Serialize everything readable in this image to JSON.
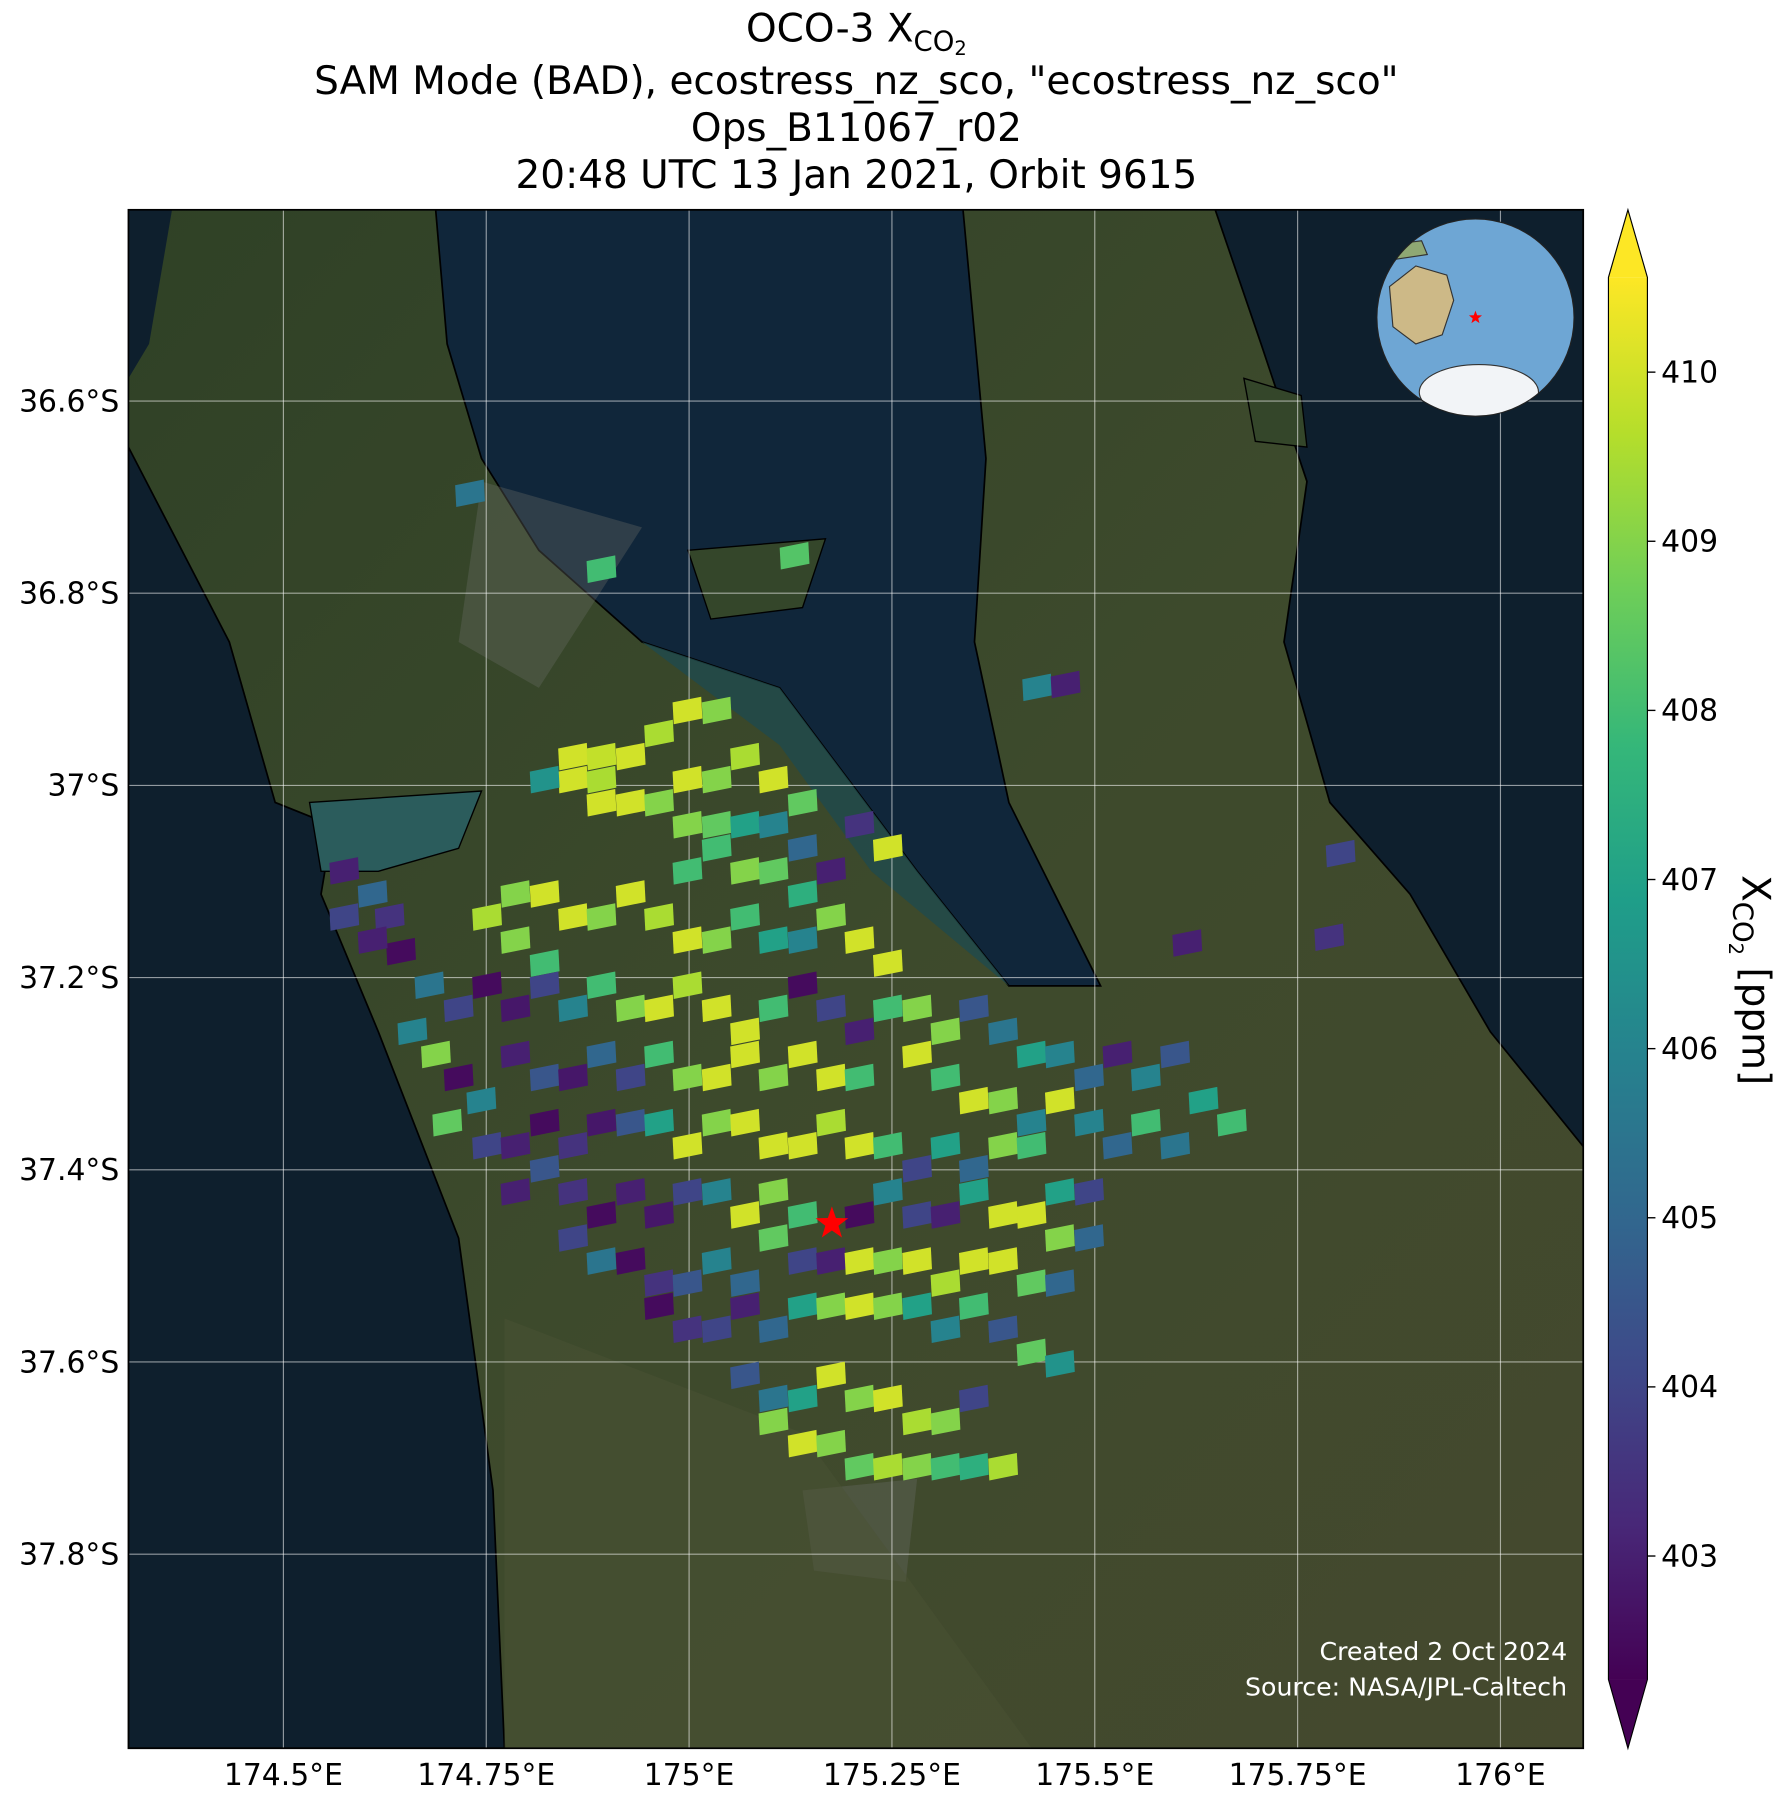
{
  "chart_data": {
    "type": "map",
    "title": "OCO-3 X",
    "title_sub": "CO",
    "title_subsub": "2",
    "subtitle_lines": [
      "SAM Mode (BAD), ecostress_nz_sco, \"ecostress_nz_sco\"",
      "Ops_B11067_r02",
      "20:48 UTC 13 Jan 2021, Orbit 9615"
    ],
    "xlim": [
      174.309,
      176.102
    ],
    "ylim": [
      -38.002,
      -36.401
    ],
    "xticks": [
      {
        "value": 174.5,
        "label": "174.5°E"
      },
      {
        "value": 174.75,
        "label": "174.75°E"
      },
      {
        "value": 175,
        "label": "175°E"
      },
      {
        "value": 175.25,
        "label": "175.25°E"
      },
      {
        "value": 175.5,
        "label": "175.5°E"
      },
      {
        "value": 175.75,
        "label": "175.75°E"
      },
      {
        "value": 176,
        "label": "176°E"
      }
    ],
    "yticks": [
      {
        "value": -36.6,
        "label": "36.6°S"
      },
      {
        "value": -36.8,
        "label": "36.8°S"
      },
      {
        "value": -37,
        "label": "37°S"
      },
      {
        "value": -37.2,
        "label": "37.2°S"
      },
      {
        "value": -37.4,
        "label": "37.4°S"
      },
      {
        "value": -37.6,
        "label": "37.6°S"
      },
      {
        "value": -37.8,
        "label": "37.8°S"
      }
    ],
    "grid": true,
    "colorbar": {
      "label": "X",
      "label_sub": "CO",
      "label_subsub": "2",
      "label_unit": " [ppm]",
      "clim": [
        402.27,
        410.56
      ],
      "ticks": [
        403,
        404,
        405,
        406,
        407,
        408,
        409,
        410
      ],
      "colormap": [
        "#440154",
        "#482878",
        "#3e4989",
        "#31688e",
        "#26828e",
        "#1f9e89",
        "#35b779",
        "#6ece58",
        "#b5de2b",
        "#fde725"
      ],
      "extend": true
    },
    "target": {
      "lon": 175.176,
      "lat": -37.456,
      "color": "#ff0000"
    },
    "footnotes": [
      "Created 2 Oct 2024",
      "Source: NASA/JPL-Caltech"
    ],
    "soundings": [
      [
        174.857,
        -36.97,
        410
      ],
      [
        174.892,
        -36.97,
        409.8
      ],
      [
        174.928,
        -36.97,
        410
      ],
      [
        174.963,
        -36.946,
        409.5
      ],
      [
        174.998,
        -36.922,
        410
      ],
      [
        175.034,
        -36.922,
        409
      ],
      [
        174.857,
        -36.994,
        410
      ],
      [
        174.892,
        -36.994,
        409.5
      ],
      [
        174.928,
        -37.018,
        410
      ],
      [
        174.963,
        -37.018,
        409
      ],
      [
        174.998,
        -36.994,
        410
      ],
      [
        175.034,
        -36.994,
        409
      ],
      [
        174.822,
        -36.994,
        406.5
      ],
      [
        174.892,
        -37.018,
        410
      ],
      [
        175.069,
        -36.97,
        409.5
      ],
      [
        175.104,
        -36.994,
        410
      ],
      [
        175.14,
        -37.018,
        408.5
      ],
      [
        174.998,
        -37.041,
        409
      ],
      [
        175.034,
        -37.041,
        408.5
      ],
      [
        175.069,
        -37.041,
        407
      ],
      [
        175.104,
        -37.041,
        406
      ],
      [
        175.14,
        -37.065,
        405
      ],
      [
        175.034,
        -37.065,
        408
      ],
      [
        175.069,
        -37.089,
        409
      ],
      [
        175.104,
        -37.089,
        408.5
      ],
      [
        175.14,
        -37.113,
        407.5
      ],
      [
        175.175,
        -37.089,
        403
      ],
      [
        175.21,
        -37.041,
        403.5
      ],
      [
        175.245,
        -37.065,
        410
      ],
      [
        174.998,
        -37.089,
        408
      ],
      [
        174.786,
        -37.113,
        409
      ],
      [
        174.822,
        -37.113,
        410
      ],
      [
        174.857,
        -37.137,
        410
      ],
      [
        174.892,
        -37.137,
        409
      ],
      [
        174.928,
        -37.113,
        410
      ],
      [
        174.963,
        -37.137,
        409.5
      ],
      [
        174.998,
        -37.161,
        410
      ],
      [
        175.034,
        -37.161,
        409
      ],
      [
        175.069,
        -37.137,
        408
      ],
      [
        175.104,
        -37.161,
        407
      ],
      [
        175.14,
        -37.161,
        406
      ],
      [
        175.175,
        -37.137,
        409
      ],
      [
        175.21,
        -37.161,
        410
      ],
      [
        175.245,
        -37.185,
        410
      ],
      [
        174.751,
        -37.137,
        409.5
      ],
      [
        174.786,
        -37.161,
        409
      ],
      [
        174.822,
        -37.185,
        408
      ],
      [
        174.575,
        -37.089,
        403
      ],
      [
        174.61,
        -37.113,
        405
      ],
      [
        174.631,
        -37.137,
        403.5
      ],
      [
        174.645,
        -37.173,
        402.5
      ],
      [
        174.61,
        -37.161,
        403
      ],
      [
        174.68,
        -37.208,
        405.5
      ],
      [
        174.716,
        -37.232,
        404
      ],
      [
        174.659,
        -37.256,
        406
      ],
      [
        174.688,
        -37.28,
        409
      ],
      [
        174.716,
        -37.304,
        402.5
      ],
      [
        174.744,
        -37.328,
        406
      ],
      [
        174.702,
        -37.351,
        408.5
      ],
      [
        174.575,
        -37.137,
        404
      ],
      [
        174.751,
        -37.208,
        402.5
      ],
      [
        174.786,
        -37.232,
        402.8
      ],
      [
        174.822,
        -37.208,
        404
      ],
      [
        174.857,
        -37.232,
        406
      ],
      [
        174.892,
        -37.208,
        408
      ],
      [
        174.928,
        -37.232,
        409
      ],
      [
        174.963,
        -37.232,
        410
      ],
      [
        174.998,
        -37.208,
        409.5
      ],
      [
        175.034,
        -37.232,
        410
      ],
      [
        175.069,
        -37.256,
        410
      ],
      [
        175.104,
        -37.232,
        408
      ],
      [
        175.14,
        -37.208,
        402.5
      ],
      [
        175.175,
        -37.232,
        404
      ],
      [
        175.21,
        -37.256,
        403
      ],
      [
        174.786,
        -37.28,
        403
      ],
      [
        174.822,
        -37.304,
        404.5
      ],
      [
        174.857,
        -37.304,
        402.8
      ],
      [
        174.892,
        -37.28,
        405
      ],
      [
        174.928,
        -37.304,
        404
      ],
      [
        174.963,
        -37.28,
        408
      ],
      [
        174.998,
        -37.304,
        409
      ],
      [
        175.034,
        -37.304,
        410
      ],
      [
        175.069,
        -37.28,
        410
      ],
      [
        175.104,
        -37.304,
        409
      ],
      [
        175.14,
        -37.28,
        410
      ],
      [
        175.175,
        -37.304,
        410
      ],
      [
        175.21,
        -37.304,
        408
      ],
      [
        175.245,
        -37.232,
        408
      ],
      [
        175.281,
        -37.232,
        409
      ],
      [
        175.316,
        -37.256,
        409
      ],
      [
        175.351,
        -37.232,
        404.5
      ],
      [
        175.387,
        -37.256,
        405.5
      ],
      [
        175.422,
        -37.28,
        407
      ],
      [
        175.457,
        -37.28,
        406
      ],
      [
        175.493,
        -37.304,
        405
      ],
      [
        175.528,
        -37.28,
        403
      ],
      [
        175.563,
        -37.304,
        406
      ],
      [
        175.599,
        -37.28,
        404.5
      ],
      [
        175.634,
        -37.328,
        407
      ],
      [
        175.669,
        -37.351,
        408
      ],
      [
        175.281,
        -37.28,
        410
      ],
      [
        175.316,
        -37.304,
        408
      ],
      [
        175.351,
        -37.328,
        410
      ],
      [
        175.387,
        -37.328,
        409
      ],
      [
        175.422,
        -37.351,
        406
      ],
      [
        175.457,
        -37.328,
        410
      ],
      [
        175.493,
        -37.351,
        406
      ],
      [
        175.528,
        -37.375,
        405
      ],
      [
        175.563,
        -37.351,
        408
      ],
      [
        175.599,
        -37.375,
        405.5
      ],
      [
        174.751,
        -37.375,
        404
      ],
      [
        174.786,
        -37.375,
        403
      ],
      [
        174.822,
        -37.351,
        402.5
      ],
      [
        174.857,
        -37.375,
        403.5
      ],
      [
        174.892,
        -37.351,
        402.8
      ],
      [
        174.928,
        -37.351,
        404.5
      ],
      [
        174.963,
        -37.351,
        407
      ],
      [
        174.998,
        -37.375,
        410
      ],
      [
        175.034,
        -37.351,
        409
      ],
      [
        175.069,
        -37.351,
        410
      ],
      [
        175.104,
        -37.375,
        410
      ],
      [
        175.14,
        -37.375,
        410
      ],
      [
        175.175,
        -37.351,
        409.5
      ],
      [
        175.21,
        -37.375,
        410
      ],
      [
        175.245,
        -37.375,
        408
      ],
      [
        175.281,
        -37.399,
        404
      ],
      [
        175.316,
        -37.375,
        407
      ],
      [
        175.351,
        -37.399,
        405
      ],
      [
        175.387,
        -37.375,
        409
      ],
      [
        175.422,
        -37.375,
        408
      ],
      [
        175.457,
        -37.423,
        407
      ],
      [
        175.493,
        -37.423,
        404
      ],
      [
        174.786,
        -37.423,
        403
      ],
      [
        174.822,
        -37.399,
        404.5
      ],
      [
        174.857,
        -37.423,
        403.5
      ],
      [
        174.892,
        -37.447,
        402.5
      ],
      [
        174.928,
        -37.423,
        403
      ],
      [
        174.963,
        -37.447,
        402.8
      ],
      [
        174.998,
        -37.423,
        404
      ],
      [
        175.034,
        -37.423,
        406
      ],
      [
        175.069,
        -37.447,
        410
      ],
      [
        175.104,
        -37.423,
        409
      ],
      [
        175.14,
        -37.447,
        408
      ],
      [
        175.21,
        -37.447,
        402.5
      ],
      [
        175.245,
        -37.423,
        406
      ],
      [
        175.281,
        -37.447,
        404
      ],
      [
        175.316,
        -37.447,
        403
      ],
      [
        175.351,
        -37.423,
        407
      ],
      [
        175.387,
        -37.447,
        410
      ],
      [
        175.422,
        -37.447,
        410
      ],
      [
        175.457,
        -37.471,
        409
      ],
      [
        175.493,
        -37.471,
        405
      ],
      [
        174.857,
        -37.471,
        404
      ],
      [
        174.892,
        -37.495,
        405.5
      ],
      [
        174.928,
        -37.495,
        402.5
      ],
      [
        174.963,
        -37.518,
        403.5
      ],
      [
        174.998,
        -37.518,
        404.5
      ],
      [
        175.034,
        -37.495,
        406
      ],
      [
        175.069,
        -37.518,
        405
      ],
      [
        175.104,
        -37.471,
        408.5
      ],
      [
        175.14,
        -37.495,
        404
      ],
      [
        175.175,
        -37.495,
        403
      ],
      [
        175.21,
        -37.495,
        410
      ],
      [
        175.245,
        -37.495,
        409
      ],
      [
        175.281,
        -37.495,
        410
      ],
      [
        175.316,
        -37.518,
        409.5
      ],
      [
        175.351,
        -37.495,
        410
      ],
      [
        175.387,
        -37.495,
        410
      ],
      [
        175.422,
        -37.518,
        408.5
      ],
      [
        175.457,
        -37.518,
        405
      ],
      [
        174.963,
        -37.542,
        402.5
      ],
      [
        174.998,
        -37.566,
        403.5
      ],
      [
        175.034,
        -37.566,
        404
      ],
      [
        175.069,
        -37.542,
        403
      ],
      [
        175.104,
        -37.566,
        405
      ],
      [
        175.14,
        -37.542,
        407
      ],
      [
        175.175,
        -37.542,
        409
      ],
      [
        175.21,
        -37.542,
        410
      ],
      [
        175.245,
        -37.542,
        409
      ],
      [
        175.281,
        -37.542,
        407
      ],
      [
        175.316,
        -37.566,
        406
      ],
      [
        175.351,
        -37.542,
        408
      ],
      [
        175.387,
        -37.566,
        404.5
      ],
      [
        175.422,
        -37.59,
        408.5
      ],
      [
        175.457,
        -37.602,
        406.5
      ],
      [
        175.069,
        -37.614,
        404.5
      ],
      [
        175.104,
        -37.638,
        405.5
      ],
      [
        175.14,
        -37.638,
        407
      ],
      [
        175.175,
        -37.614,
        410
      ],
      [
        175.21,
        -37.638,
        409
      ],
      [
        175.245,
        -37.638,
        410
      ],
      [
        175.281,
        -37.662,
        409.5
      ],
      [
        175.316,
        -37.662,
        409
      ],
      [
        175.351,
        -37.638,
        404
      ],
      [
        175.104,
        -37.662,
        409
      ],
      [
        175.14,
        -37.685,
        410
      ],
      [
        175.175,
        -37.685,
        409
      ],
      [
        175.21,
        -37.709,
        408.5
      ],
      [
        175.245,
        -37.709,
        409.5
      ],
      [
        175.281,
        -37.709,
        409
      ],
      [
        175.316,
        -37.709,
        408
      ],
      [
        175.351,
        -37.709,
        407.5
      ],
      [
        175.387,
        -37.709,
        409.5
      ],
      [
        174.73,
        -36.696,
        405.5
      ],
      [
        174.892,
        -36.775,
        408
      ],
      [
        175.13,
        -36.761,
        408.3
      ],
      [
        175.429,
        -36.898,
        406
      ],
      [
        175.464,
        -36.895,
        403
      ],
      [
        175.803,
        -37.071,
        404
      ],
      [
        175.789,
        -37.158,
        403.5
      ],
      [
        175.614,
        -37.164,
        403
      ]
    ]
  }
}
